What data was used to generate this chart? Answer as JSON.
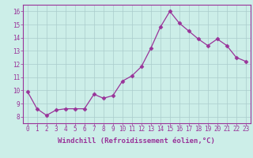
{
  "x": [
    0,
    1,
    2,
    3,
    4,
    5,
    6,
    7,
    8,
    9,
    10,
    11,
    12,
    13,
    14,
    15,
    16,
    17,
    18,
    19,
    20,
    21,
    22,
    23
  ],
  "y": [
    9.9,
    8.6,
    8.1,
    8.5,
    8.6,
    8.6,
    8.6,
    9.7,
    9.4,
    9.6,
    10.7,
    11.1,
    11.8,
    13.2,
    14.8,
    16.0,
    15.1,
    14.5,
    13.9,
    13.4,
    13.9,
    13.4,
    12.5,
    12.2
  ],
  "line_color": "#993399",
  "marker": "D",
  "marker_size": 2.5,
  "bg_color": "#cceee8",
  "grid_color": "#aacccc",
  "xlabel": "Windchill (Refroidissement éolien,°C)",
  "xlabel_fontsize": 6.5,
  "tick_fontsize": 5.5,
  "ylim": [
    7.5,
    16.5
  ],
  "yticks": [
    8,
    9,
    10,
    11,
    12,
    13,
    14,
    15,
    16
  ],
  "xlim": [
    -0.5,
    23.5
  ],
  "linewidth": 0.9
}
